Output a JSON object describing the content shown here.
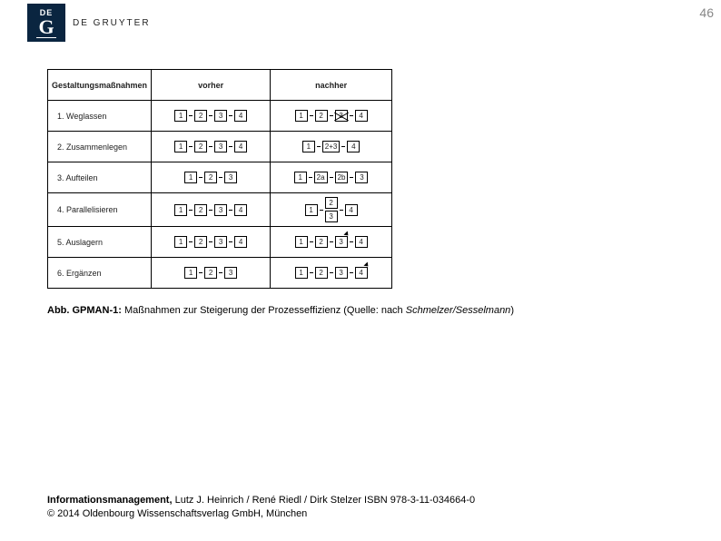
{
  "publisher": {
    "logo_de": "DE",
    "logo_g": "G",
    "name": "DE GRUYTER"
  },
  "page_number": "46",
  "figure": {
    "headers": [
      "Gestaltungsmaßnahmen",
      "vorher",
      "nachher"
    ],
    "rows": [
      {
        "label": "1. Weglassen",
        "before": [
          "1",
          "2",
          "3",
          "4"
        ],
        "after": {
          "type": "crossed",
          "items": [
            "1",
            "2",
            "3",
            "4"
          ],
          "crossIndex": 2
        }
      },
      {
        "label": "2. Zusammenlegen",
        "before": [
          "1",
          "2",
          "3",
          "4"
        ],
        "after": {
          "type": "merged",
          "items": [
            "1",
            "2+3",
            "4"
          ]
        }
      },
      {
        "label": "3. Aufteilen",
        "before": [
          "1",
          "2",
          "3"
        ],
        "after": {
          "type": "split",
          "items": [
            "1",
            "2a",
            "2b",
            "3"
          ]
        }
      },
      {
        "label": "4. Parallelisieren",
        "before": [
          "1",
          "2",
          "3",
          "4"
        ],
        "after": {
          "type": "parallel",
          "top": [
            "1",
            "2",
            "4"
          ],
          "bottom": "3"
        }
      },
      {
        "label": "5. Auslagern",
        "before": [
          "1",
          "2",
          "3",
          "4"
        ],
        "after": {
          "type": "outsource",
          "items": [
            "1",
            "2",
            "3",
            "4"
          ],
          "arrowIndex": 2
        }
      },
      {
        "label": "6. Ergänzen",
        "before": [
          "1",
          "2",
          "3"
        ],
        "after": {
          "type": "add",
          "items": [
            "1",
            "2",
            "3",
            "4"
          ],
          "arrowIndex": 3
        }
      }
    ]
  },
  "caption": {
    "prefix": "Abb. GPMAN-1:",
    "text": " Maßnahmen zur Steigerung der Prozesseffizienz (Quelle: nach ",
    "source": "Schmelzer/Sesselmann",
    "suffix": ")"
  },
  "footer": {
    "title": "Informationsmanagement,",
    "line1_rest": " Lutz J. Heinrich / René Riedl / Dirk Stelzer ISBN 978-3-11-034664-0",
    "line2": "© 2014 Oldenbourg Wissenschaftsverlag GmbH, München"
  }
}
